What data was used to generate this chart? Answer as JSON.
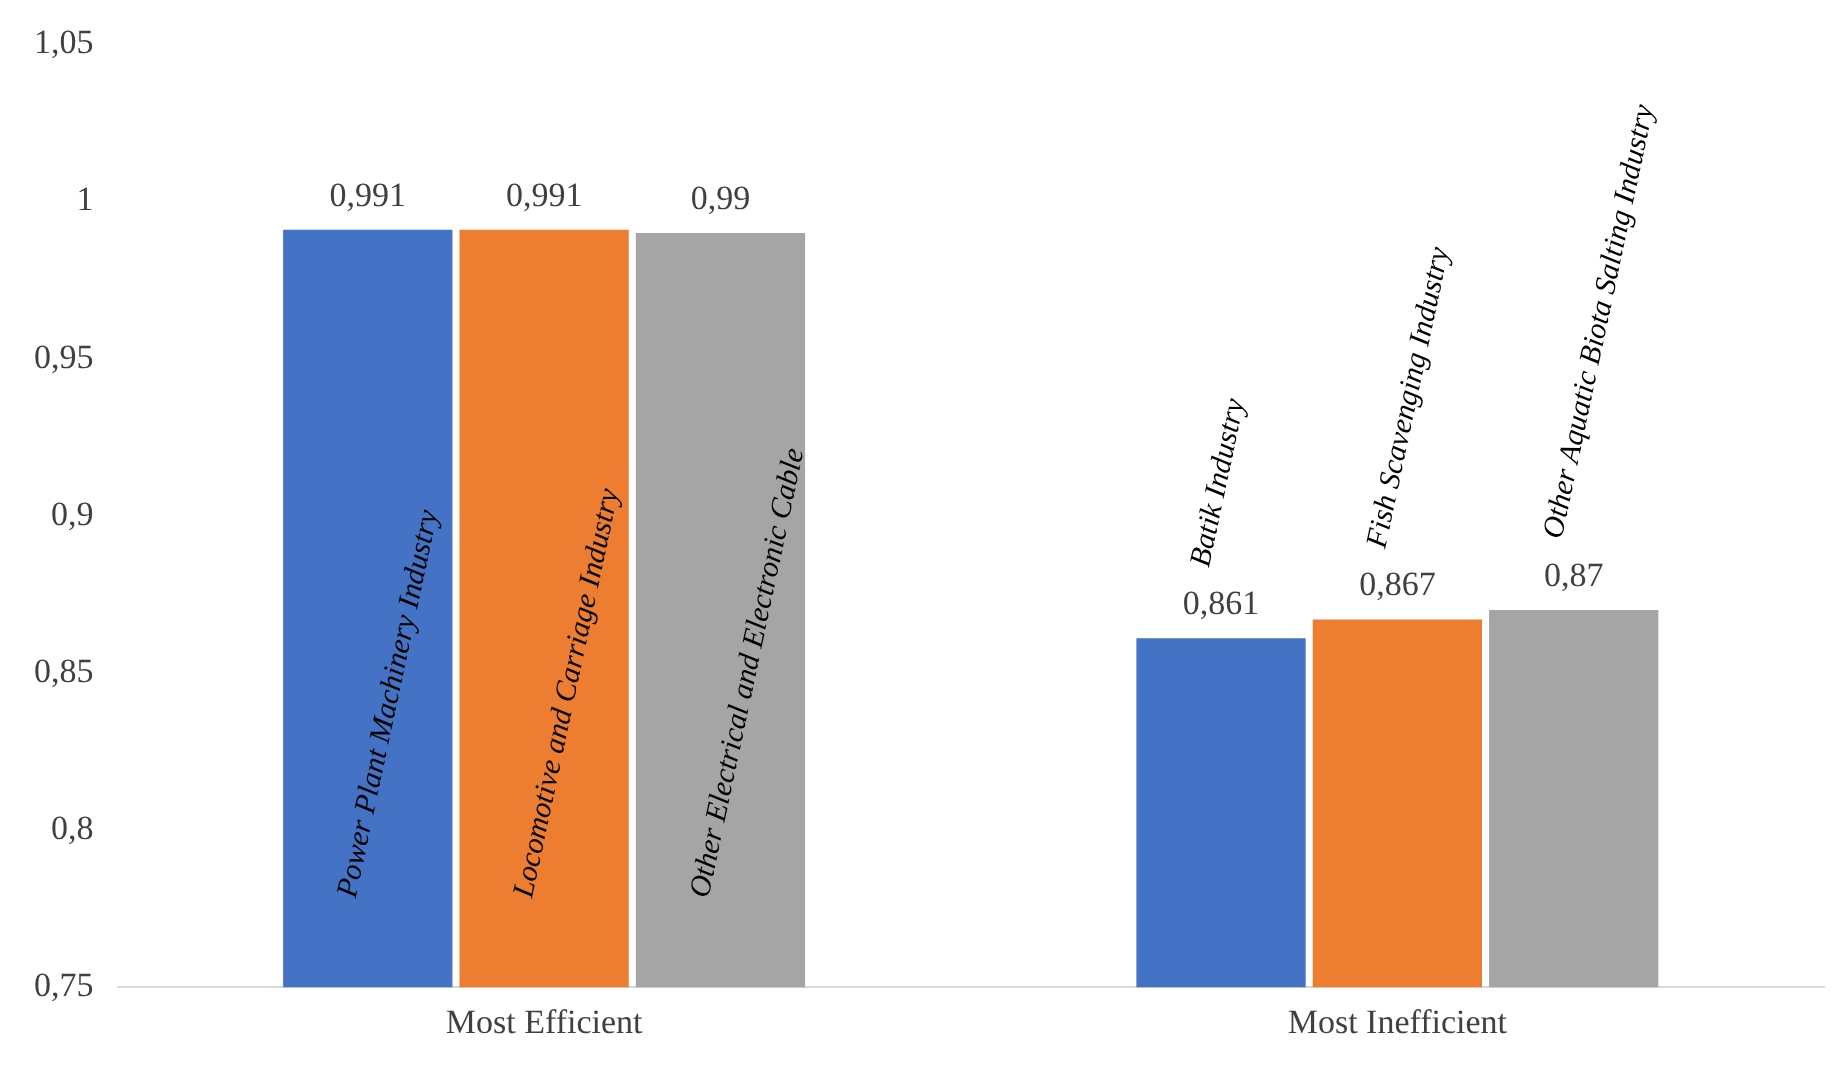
{
  "chart_data": {
    "type": "bar",
    "categories": [
      "Most Efficient",
      "Most Inefficient"
    ],
    "series": [
      {
        "color": "#4472c4",
        "values": [
          0.991,
          0.861
        ],
        "value_labels": [
          "0,991",
          "0,861"
        ]
      },
      {
        "color": "#ed7d31",
        "values": [
          0.991,
          0.867
        ],
        "value_labels": [
          "0,991",
          "0,867"
        ]
      },
      {
        "color": "#a5a5a5",
        "values": [
          0.99,
          0.87
        ],
        "value_labels": [
          "0,99",
          "0,87"
        ]
      }
    ],
    "ylim": [
      0.75,
      1.05
    ],
    "yticks": [
      {
        "value": 0.75,
        "label": "0,75"
      },
      {
        "value": 0.8,
        "label": "0,8"
      },
      {
        "value": 0.85,
        "label": "0,85"
      },
      {
        "value": 0.9,
        "label": "0,9"
      },
      {
        "value": 0.95,
        "label": "0,95"
      },
      {
        "value": 1,
        "label": "1"
      },
      {
        "value": 1.05,
        "label": "1,05"
      }
    ],
    "grid": false,
    "legend": false,
    "annotations": [
      "Power Plant Machinery Industry",
      "Locomotive and Carriage Industry",
      "Other Electrical and Electronic Cable",
      "Batik Industry",
      "Fish Scavenging Industry",
      "Other Aquatic Biota Salting Industry"
    ]
  }
}
